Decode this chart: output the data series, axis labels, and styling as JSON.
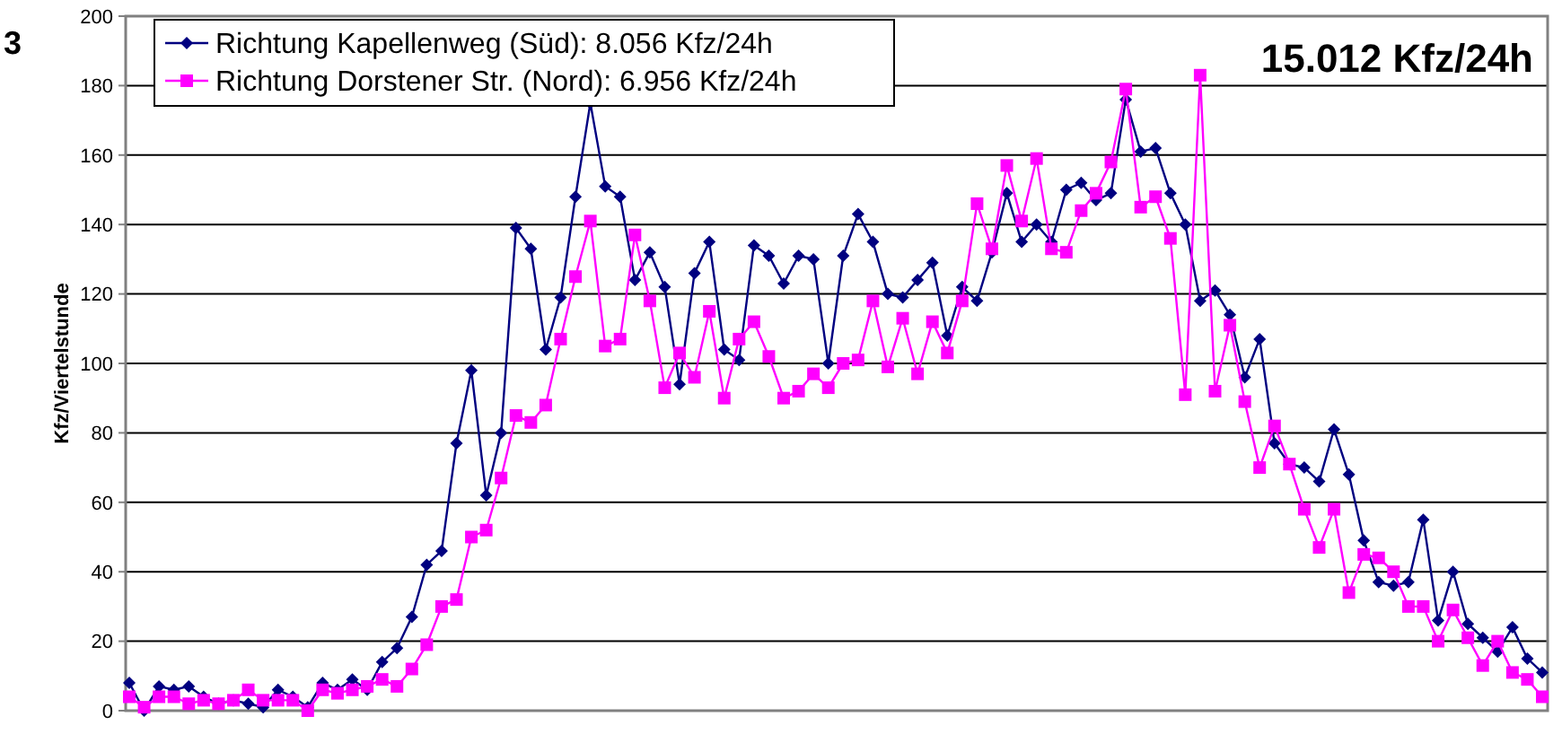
{
  "chart_data": {
    "type": "line",
    "title": "15.012 Kfz/24h",
    "ylabel": "Kfz/Viertelstunde",
    "annotations": [
      "3"
    ],
    "categories": [
      null,
      null,
      null,
      null,
      null,
      null,
      null,
      null,
      null,
      null,
      null,
      null,
      null,
      null,
      null,
      null,
      null,
      null,
      null,
      null,
      null,
      null,
      null,
      null,
      null,
      null,
      null,
      null,
      null,
      null,
      null,
      null,
      null,
      null,
      null,
      null,
      null,
      null,
      null,
      null,
      null,
      null,
      null,
      null,
      null,
      null,
      null,
      null,
      null,
      null,
      null,
      null,
      null,
      null,
      null,
      null,
      null,
      null,
      null,
      null,
      null,
      null,
      null,
      null,
      null,
      null,
      null,
      null,
      null,
      null,
      null,
      null,
      null,
      null,
      null,
      null,
      null,
      null,
      null,
      null,
      null,
      null,
      null,
      null,
      null,
      null,
      null,
      null,
      null,
      null,
      null,
      null,
      null,
      null,
      null,
      null
    ],
    "ylim": [
      0,
      200
    ],
    "yticks": [
      0,
      20,
      40,
      60,
      80,
      100,
      120,
      140,
      160,
      180,
      200
    ],
    "grid": "y",
    "legend": "top left",
    "tick_labels": "y",
    "series": [
      {
        "name": "Richtung Kapellenweg (Süd): 8.056 Kfz/24h",
        "color": "#000080",
        "marker": "diamond",
        "values": [
          8,
          0,
          7,
          6,
          7,
          4,
          2,
          3,
          2,
          1,
          6,
          4,
          1,
          8,
          6,
          9,
          6,
          14,
          18,
          27,
          42,
          46,
          77,
          98,
          62,
          80,
          139,
          133,
          104,
          119,
          148,
          175,
          151,
          148,
          124,
          132,
          122,
          94,
          126,
          135,
          104,
          101,
          134,
          131,
          123,
          131,
          130,
          100,
          131,
          143,
          135,
          120,
          119,
          124,
          129,
          108,
          122,
          118,
          132,
          149,
          135,
          140,
          135,
          150,
          152,
          147,
          149,
          176,
          161,
          162,
          149,
          140,
          118,
          121,
          114,
          96,
          107,
          77,
          71,
          70,
          66,
          81,
          68,
          49,
          37,
          36,
          37,
          55,
          26,
          40,
          25,
          21,
          17,
          24,
          15,
          11
        ]
      },
      {
        "name": "Richtung Dorstener Str. (Nord): 6.956 Kfz/24h",
        "color": "#ff00ff",
        "marker": "square",
        "values": [
          4,
          1,
          4,
          4,
          2,
          3,
          2,
          3,
          6,
          3,
          3,
          3,
          0,
          6,
          5,
          6,
          7,
          9,
          7,
          12,
          19,
          30,
          32,
          50,
          52,
          67,
          85,
          83,
          88,
          107,
          125,
          141,
          105,
          107,
          137,
          118,
          93,
          103,
          96,
          115,
          90,
          107,
          112,
          102,
          90,
          92,
          97,
          93,
          100,
          101,
          118,
          99,
          113,
          97,
          112,
          103,
          118,
          146,
          133,
          157,
          141,
          159,
          133,
          132,
          144,
          149,
          158,
          179,
          145,
          148,
          136,
          91,
          183,
          92,
          111,
          89,
          70,
          82,
          71,
          58,
          47,
          58,
          34,
          45,
          44,
          40,
          30,
          30,
          20,
          29,
          21,
          13,
          20,
          11,
          9,
          4
        ]
      }
    ]
  }
}
